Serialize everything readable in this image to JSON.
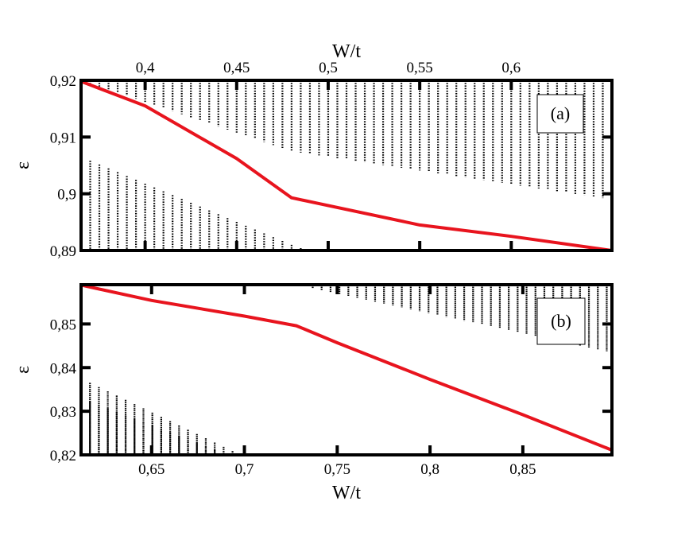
{
  "chart_data": [
    {
      "type": "scatter",
      "panel_label": "(a)",
      "xlabel": "W/t",
      "xlabel_position": "top",
      "ylabel": "ε",
      "xlim": [
        0.365,
        0.655
      ],
      "ylim": [
        0.89,
        0.92
      ],
      "xticks": [
        0.4,
        0.45,
        0.5,
        0.55,
        0.6
      ],
      "xtick_labels": [
        "0,4",
        "0,45",
        "0,5",
        "0,55",
        "0,6"
      ],
      "yticks": [
        0.89,
        0.9,
        0.91,
        0.92
      ],
      "ytick_labels": [
        "0,89",
        "0,9",
        "0,91",
        "0,92"
      ],
      "dot_columns": {
        "x_start": 0.365,
        "x_step": 0.005,
        "count": 58,
        "y_step": 0.00045,
        "upper_band_top": 0.92,
        "upper_band_bottom": [
          [
            0.365,
            0.92
          ],
          [
            0.48,
            0.9075
          ],
          [
            0.655,
            0.899
          ]
        ],
        "lower_band_top": [
          [
            0.365,
            0.9065
          ],
          [
            0.48,
            0.891
          ],
          [
            0.655,
            0.8705
          ]
        ],
        "color": "#000000"
      },
      "series": [
        {
          "color": "#e8141e",
          "points": [
            [
              0.365,
              0.9198
            ],
            [
              0.4,
              0.9155
            ],
            [
              0.45,
              0.9062
            ],
            [
              0.48,
              0.8993
            ],
            [
              0.55,
              0.8945
            ],
            [
              0.6,
              0.8925
            ],
            [
              0.655,
              0.89
            ]
          ]
        }
      ],
      "grid": false
    },
    {
      "type": "scatter",
      "panel_label": "(b)",
      "xlabel": "W/t",
      "xlabel_position": "bottom",
      "ylabel": "ε",
      "xlim": [
        0.612,
        0.898
      ],
      "ylim": [
        0.82,
        0.859
      ],
      "xticks": [
        0.65,
        0.7,
        0.75,
        0.8,
        0.85
      ],
      "xtick_labels": [
        "0,65",
        "0,7",
        "0,75",
        "0,8",
        "0,85"
      ],
      "yticks": [
        0.82,
        0.83,
        0.84,
        0.85
      ],
      "ytick_labels": [
        "0,82",
        "0,83",
        "0,84",
        "0,85"
      ],
      "dot_columns": {
        "x_start": 0.612,
        "x_step": 0.0048,
        "count": 60,
        "y_step": 0.00028,
        "upper_band_top": 0.859,
        "upper_band_bottom": [
          [
            0.612,
            0.859
          ],
          [
            0.728,
            0.859
          ],
          [
            0.898,
            0.8435
          ]
        ],
        "lower_band_top": [
          [
            0.612,
            0.8375
          ],
          [
            0.72,
            0.8155
          ],
          [
            0.898,
            0.801
          ]
        ],
        "second_lower_band_top": [
          [
            0.612,
            0.833
          ],
          [
            0.7,
            0.8185
          ],
          [
            0.898,
            0.8
          ]
        ],
        "color": "#000000"
      },
      "series": [
        {
          "color": "#e8141e",
          "points": [
            [
              0.612,
              0.8589
            ],
            [
              0.65,
              0.8554
            ],
            [
              0.7,
              0.8518
            ],
            [
              0.728,
              0.8496
            ],
            [
              0.75,
              0.8457
            ],
            [
              0.8,
              0.8373
            ],
            [
              0.85,
              0.8292
            ],
            [
              0.898,
              0.8211
            ]
          ]
        }
      ],
      "grid": false
    }
  ]
}
